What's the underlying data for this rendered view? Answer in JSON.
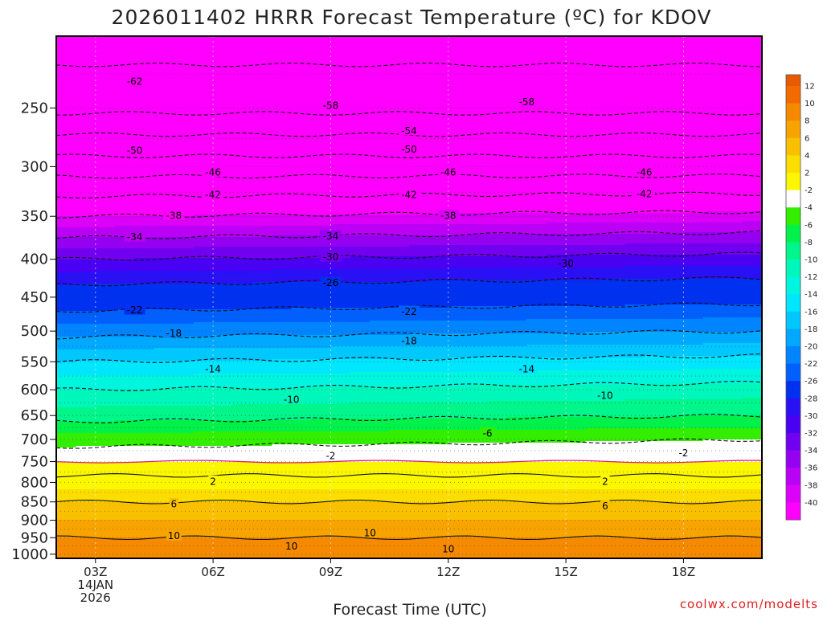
{
  "chart_data": {
    "type": "heatmap",
    "title": "2026011402 HRRR Forecast Temperature (ºC) for KDOV",
    "xlabel": "Forecast Time (UTC)",
    "ylabel": "",
    "credit": "coolwx.com/modelts",
    "x_start_hour": 2,
    "x_end_hour": 20,
    "x_ticks": [
      {
        "hour": 3,
        "lines": [
          "03Z",
          "14JAN",
          "2026"
        ]
      },
      {
        "hour": 6,
        "lines": [
          "06Z"
        ]
      },
      {
        "hour": 9,
        "lines": [
          "09Z"
        ]
      },
      {
        "hour": 12,
        "lines": [
          "12Z"
        ]
      },
      {
        "hour": 15,
        "lines": [
          "15Z"
        ]
      },
      {
        "hour": 18,
        "lines": [
          "18Z"
        ]
      }
    ],
    "y_axis": {
      "scale": "log",
      "top_hpa": 200,
      "bottom_hpa": 1013
    },
    "y_ticks": [
      250,
      300,
      350,
      400,
      450,
      500,
      550,
      600,
      650,
      700,
      750,
      800,
      850,
      900,
      950,
      1000
    ],
    "dotted_levels": [
      200,
      225,
      250,
      275,
      300,
      325,
      350,
      375,
      400,
      425,
      450,
      475,
      500,
      525,
      550,
      575,
      600,
      625,
      650,
      675,
      700,
      725,
      750,
      775,
      800,
      825,
      850,
      875,
      900,
      925,
      950,
      975,
      1000
    ],
    "colorbar": {
      "bands": [
        {
          "label": "12",
          "color": "#f26a00"
        },
        {
          "label": "10",
          "color": "#f58a00"
        },
        {
          "label": "8",
          "color": "#f7a400"
        },
        {
          "label": "6",
          "color": "#f9c000"
        },
        {
          "label": "4",
          "color": "#fbde00"
        },
        {
          "label": "2",
          "color": "#fbf700"
        },
        {
          "label": "-2",
          "color": "#ffffff"
        },
        {
          "label": "-4",
          "color": "#33ee00"
        },
        {
          "label": "-6",
          "color": "#00f24a"
        },
        {
          "label": "-8",
          "color": "#00f58a"
        },
        {
          "label": "-10",
          "color": "#00f7bb"
        },
        {
          "label": "-12",
          "color": "#00f5df"
        },
        {
          "label": "-14",
          "color": "#00e6ff"
        },
        {
          "label": "-16",
          "color": "#00c8ff"
        },
        {
          "label": "-18",
          "color": "#00a8ff"
        },
        {
          "label": "-20",
          "color": "#0084ff"
        },
        {
          "label": "-22",
          "color": "#0060ff"
        },
        {
          "label": "-26",
          "color": "#0030f0"
        },
        {
          "label": "-28",
          "color": "#2a10f5"
        },
        {
          "label": "-30",
          "color": "#4a00f2"
        },
        {
          "label": "-32",
          "color": "#7200f0"
        },
        {
          "label": "-34",
          "color": "#9600f2"
        },
        {
          "label": "-36",
          "color": "#ba00f5"
        },
        {
          "label": "-38",
          "color": "#dc00f8"
        },
        {
          "label": "-40",
          "color": "#ff00ff"
        }
      ],
      "top_color": "#e85a00"
    },
    "ground_color": "#a0522d",
    "zero_line_color": "#e0207a",
    "profile_hours": [
      2,
      20
    ],
    "profile_levels": [
      200,
      250,
      300,
      350,
      400,
      450,
      500,
      550,
      600,
      650,
      700,
      750,
      800,
      850,
      900,
      950,
      1000,
      1013
    ],
    "profile_temps": [
      [
        -64,
        -64
      ],
      [
        -59,
        -59
      ],
      [
        -48,
        -48
      ],
      [
        -38,
        -37
      ],
      [
        -30,
        -29
      ],
      [
        -24,
        -23
      ],
      [
        -19,
        -18
      ],
      [
        -14,
        -13
      ],
      [
        -10,
        -9
      ],
      [
        -7,
        -6
      ],
      [
        -3,
        -2
      ],
      [
        0,
        0
      ],
      [
        3,
        3
      ],
      [
        6,
        6
      ],
      [
        8,
        8
      ],
      [
        10,
        10
      ],
      [
        11,
        11
      ],
      [
        12,
        12
      ]
    ],
    "contours": [
      {
        "value": -62,
        "label": "-62",
        "style": "dashed",
        "label_points": [
          [
            4,
            230
          ]
        ]
      },
      {
        "value": -58,
        "label": "-58",
        "style": "dashed",
        "label_points": [
          [
            9,
            248
          ],
          [
            14,
            245
          ]
        ]
      },
      {
        "value": -54,
        "label": "-54",
        "style": "dashed",
        "label_points": [
          [
            11,
            268
          ]
        ]
      },
      {
        "value": -50,
        "label": "-50",
        "style": "dashed",
        "label_points": [
          [
            4,
            285
          ],
          [
            11,
            284
          ]
        ]
      },
      {
        "value": -46,
        "label": "-46",
        "style": "dashed",
        "label_points": [
          [
            6,
            305
          ],
          [
            12,
            305
          ],
          [
            17,
            305
          ]
        ]
      },
      {
        "value": -42,
        "label": "-42",
        "style": "dashed",
        "label_points": [
          [
            6,
            327
          ],
          [
            11,
            327
          ],
          [
            17,
            326
          ]
        ]
      },
      {
        "value": -38,
        "label": "-38",
        "style": "dashed",
        "label_points": [
          [
            5,
            349
          ],
          [
            12,
            349
          ]
        ]
      },
      {
        "value": -34,
        "label": "-34",
        "style": "dashed",
        "label_points": [
          [
            4,
            373
          ],
          [
            9,
            372
          ]
        ]
      },
      {
        "value": -30,
        "label": "-30",
        "style": "dashed",
        "label_points": [
          [
            9,
            397
          ],
          [
            15,
            405
          ]
        ]
      },
      {
        "value": -26,
        "label": "-26",
        "style": "dashed",
        "label_points": [
          [
            9,
            430
          ]
        ]
      },
      {
        "value": -22,
        "label": "-22",
        "style": "dashed",
        "label_points": [
          [
            4,
            468
          ],
          [
            11,
            470
          ]
        ]
      },
      {
        "value": -18,
        "label": "-18",
        "style": "dashed",
        "label_points": [
          [
            5,
            503
          ],
          [
            11,
            515
          ]
        ]
      },
      {
        "value": -14,
        "label": "-14",
        "style": "dashed",
        "label_points": [
          [
            6,
            562
          ],
          [
            14,
            562
          ]
        ]
      },
      {
        "value": -10,
        "label": "-10",
        "style": "dashed",
        "label_points": [
          [
            8,
            618
          ],
          [
            16,
            610
          ]
        ]
      },
      {
        "value": -6,
        "label": "-6",
        "style": "dashed",
        "label_points": [
          [
            13,
            686
          ]
        ]
      },
      {
        "value": -2,
        "label": "-2",
        "style": "dashed",
        "label_points": [
          [
            9,
            736
          ],
          [
            18,
            730
          ]
        ]
      },
      {
        "value": 2,
        "label": "2",
        "style": "solid",
        "label_points": [
          [
            6,
            797
          ],
          [
            16,
            797
          ]
        ]
      },
      {
        "value": 6,
        "label": "6",
        "style": "solid",
        "label_points": [
          [
            5,
            855
          ],
          [
            16,
            860
          ]
        ]
      },
      {
        "value": 10,
        "label": "10",
        "style": "solid",
        "label_points": [
          [
            5,
            944
          ],
          [
            10,
            935
          ],
          [
            8,
            975
          ],
          [
            12,
            983
          ]
        ]
      }
    ]
  }
}
